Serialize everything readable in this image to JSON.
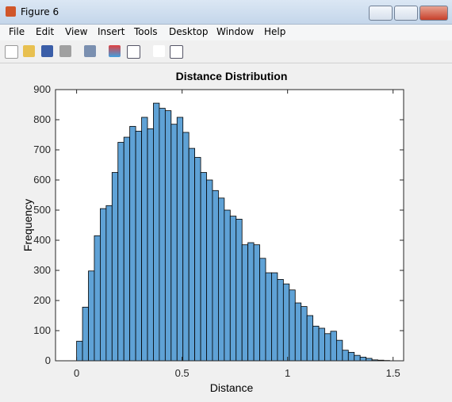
{
  "window": {
    "title": "Figure 6",
    "menu": [
      "File",
      "Edit",
      "View",
      "Insert",
      "Tools",
      "Desktop",
      "Window",
      "Help"
    ]
  },
  "chart_data": {
    "type": "histogram",
    "title": "Distance Distribution",
    "x_label": "Distance",
    "y_label": "Frequency",
    "bins": [
      0,
      0.028,
      0.056,
      0.084,
      0.112,
      0.14,
      0.168,
      0.196,
      0.224,
      0.252,
      0.28,
      0.308,
      0.336,
      0.364,
      0.392,
      0.42,
      0.448,
      0.476,
      0.504,
      0.532,
      0.56,
      0.588,
      0.616,
      0.644,
      0.672,
      0.7,
      0.728,
      0.756,
      0.784,
      0.812,
      0.84,
      0.868,
      0.896,
      0.924,
      0.952,
      0.98,
      1.008,
      1.036,
      1.064,
      1.092,
      1.12,
      1.148,
      1.176,
      1.204,
      1.232,
      1.26,
      1.288,
      1.316,
      1.344,
      1.372,
      1.4,
      1.428,
      1.456,
      1.484
    ],
    "values": [
      65,
      178,
      298,
      415,
      505,
      515,
      625,
      725,
      742,
      778,
      762,
      808,
      770,
      855,
      838,
      830,
      785,
      808,
      758,
      705,
      675,
      625,
      600,
      565,
      540,
      500,
      480,
      470,
      385,
      392,
      385,
      340,
      292,
      292,
      270,
      255,
      235,
      192,
      180,
      150,
      115,
      108,
      90,
      98,
      68,
      35,
      28,
      18,
      12,
      8,
      3,
      2,
      1
    ],
    "color": "#5fa2d6",
    "edge_color": "#000000",
    "xlim": [
      -0.1,
      1.55
    ],
    "ylim": [
      0,
      900
    ],
    "xticks": [
      0,
      0.5,
      1,
      1.5
    ],
    "yticks": [
      0,
      100,
      200,
      300,
      400,
      500,
      600,
      700,
      800,
      900
    ]
  }
}
